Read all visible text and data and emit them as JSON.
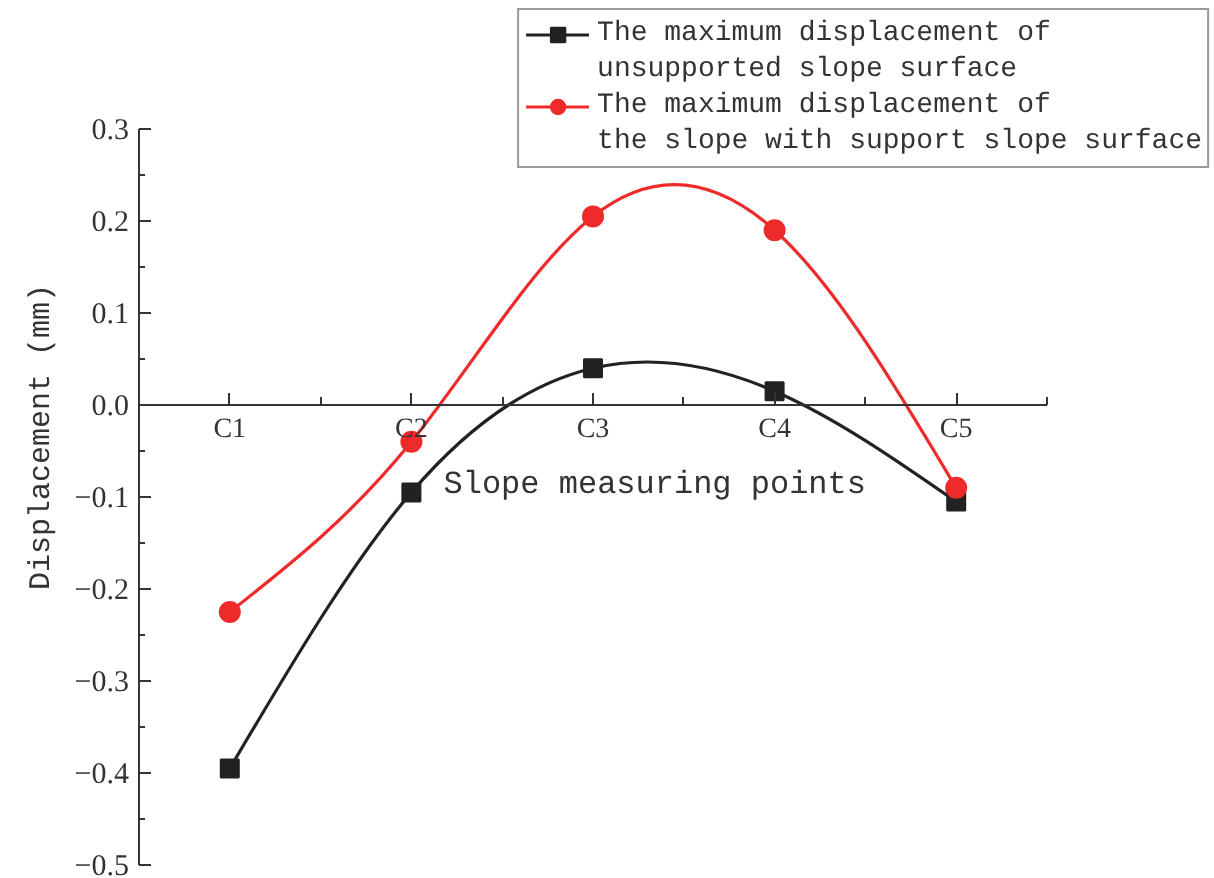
{
  "chart_data": {
    "type": "line",
    "xlabel": "Slope measuring points",
    "ylabel": "Displacement (mm)",
    "categories": [
      "C1",
      "C2",
      "C3",
      "C4",
      "C5"
    ],
    "series": [
      {
        "name": "The maximum displacement of unsupported slope surface",
        "color": "#222222",
        "marker": "square",
        "values": [
          -0.395,
          -0.095,
          0.04,
          0.015,
          -0.105
        ]
      },
      {
        "name": "The maximum displacement of the slope with support slope surface",
        "color": "#ee2a2a",
        "marker": "circle",
        "values": [
          -0.225,
          -0.04,
          0.205,
          0.19,
          -0.09
        ]
      }
    ],
    "ylim": [
      -0.5,
      0.3
    ],
    "yticks": [
      {
        "value": -0.5,
        "label": "−0.5"
      },
      {
        "value": -0.4,
        "label": "−0.4"
      },
      {
        "value": -0.3,
        "label": "−0.3"
      },
      {
        "value": -0.2,
        "label": "−0.2"
      },
      {
        "value": -0.1,
        "label": "−0.1"
      },
      {
        "value": 0,
        "label": "0.0"
      },
      0.1,
      0.2,
      0.3
    ],
    "grid": false,
    "legend": "top right"
  }
}
